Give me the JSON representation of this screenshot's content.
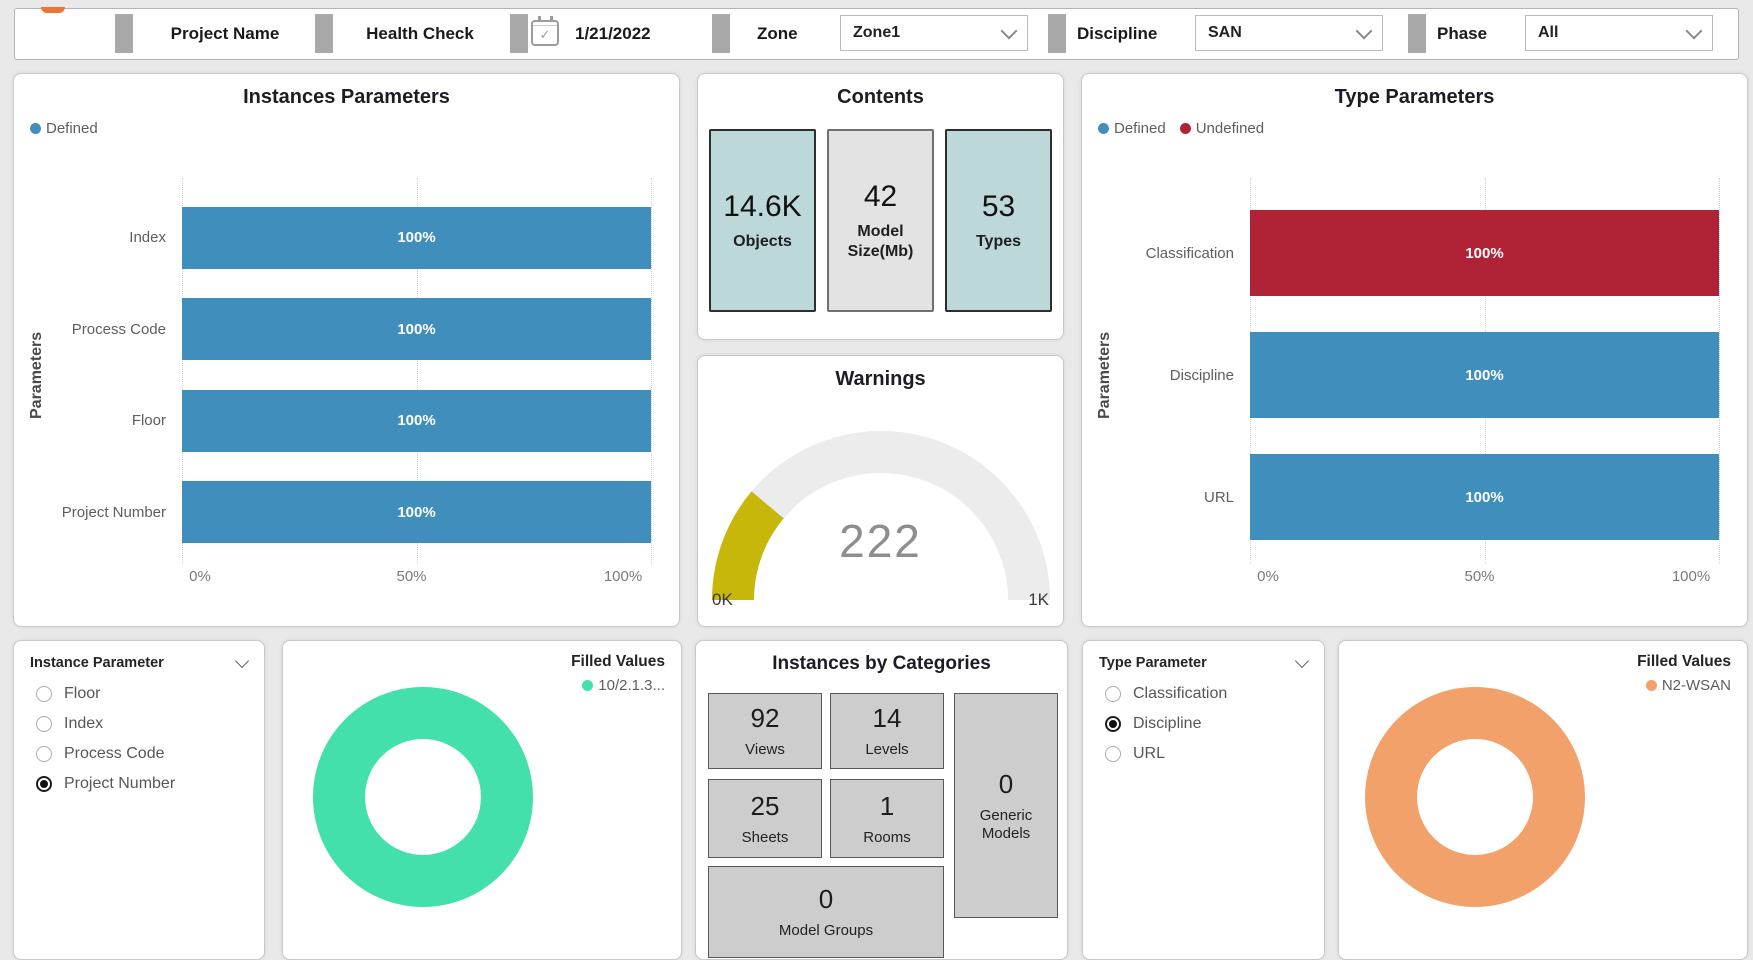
{
  "topbar": {
    "project_label": "Project Name",
    "health_label": "Health Check",
    "date_value": "1/21/2022",
    "zone_label": "Zone",
    "zone_value": "Zone1",
    "discipline_label": "Discipline",
    "discipline_value": "SAN",
    "phase_label": "Phase",
    "phase_value": "All"
  },
  "colors": {
    "blue": "#408ebc",
    "red": "#b02236",
    "yellow": "#c6b70a",
    "gauge_track": "#ececec",
    "green": "#43e0ac",
    "orange": "#f1a169"
  },
  "chart_data": [
    {
      "id": "instances-parameters",
      "type": "bar",
      "title": "Instances Parameters",
      "ylabel": "Parameters",
      "legend": [
        {
          "label": "Defined",
          "color": "#408ebc"
        }
      ],
      "categories": [
        "Index",
        "Process Code",
        "Floor",
        "Project Number"
      ],
      "values": [
        100,
        100,
        100,
        100
      ],
      "labels": [
        "100%",
        "100%",
        "100%",
        "100%"
      ],
      "colors": [
        "#408ebc",
        "#408ebc",
        "#408ebc",
        "#408ebc"
      ],
      "xlim": [
        0,
        100
      ],
      "x_ticks": [
        {
          "label": "0%",
          "pos": 0
        },
        {
          "label": "50%",
          "pos": 50
        },
        {
          "label": "100%",
          "pos": 100
        }
      ],
      "grid": "dotted-vertical",
      "legend_position": "top-left"
    },
    {
      "id": "type-parameters",
      "type": "bar",
      "title": "Type Parameters",
      "ylabel": "Parameters",
      "legend": [
        {
          "label": "Defined",
          "color": "#408ebc"
        },
        {
          "label": "Undefined",
          "color": "#b02236"
        }
      ],
      "categories": [
        "Classification",
        "Discipline",
        "URL"
      ],
      "values": [
        100,
        100,
        100
      ],
      "labels": [
        "100%",
        "100%",
        "100%"
      ],
      "colors": [
        "#b02236",
        "#408ebc",
        "#408ebc"
      ],
      "series_note": "Classification = Undefined series, Discipline and URL = Defined series",
      "xlim": [
        0,
        100
      ],
      "x_ticks": [
        {
          "label": "0%",
          "pos": 0
        },
        {
          "label": "50%",
          "pos": 50
        },
        {
          "label": "100%",
          "pos": 100
        }
      ],
      "grid": "dotted-vertical",
      "legend_position": "top-left"
    },
    {
      "id": "warnings",
      "type": "gauge",
      "title": "Warnings",
      "value": 222,
      "min": 0,
      "max": 1000,
      "min_label": "0K",
      "max_label": "1K",
      "color": "#c6b70a",
      "track_color": "#ececec"
    },
    {
      "id": "filled-values-instance",
      "type": "donut",
      "header": "Filled Values",
      "legend": [
        {
          "label": "10/2.1.3...",
          "color": "#43e0ac"
        }
      ],
      "slices": [
        {
          "label": "10/2.1.3...",
          "value": 100,
          "color": "#43e0ac"
        }
      ]
    },
    {
      "id": "filled-values-type",
      "type": "donut",
      "header": "Filled Values",
      "legend": [
        {
          "label": "N2-WSAN",
          "color": "#f1a169"
        }
      ],
      "slices": [
        {
          "label": "N2-WSAN",
          "value": 100,
          "color": "#f1a169"
        }
      ]
    }
  ],
  "contents": {
    "title": "Contents",
    "tiles": [
      {
        "value": "14.6K",
        "label": "Objects",
        "variant": "teal"
      },
      {
        "value": "42",
        "label": "Model Size(Mb)",
        "variant": "gray"
      },
      {
        "value": "53",
        "label": "Types",
        "variant": "teal"
      }
    ]
  },
  "categories_card": {
    "title": "Instances by Categories",
    "tiles": [
      {
        "key": "views",
        "value": "92",
        "label": "Views"
      },
      {
        "key": "levels",
        "value": "14",
        "label": "Levels"
      },
      {
        "key": "sheets",
        "value": "25",
        "label": "Sheets"
      },
      {
        "key": "rooms",
        "value": "1",
        "label": "Rooms"
      },
      {
        "key": "model_groups",
        "value": "0",
        "label": "Model Groups"
      },
      {
        "key": "generic_models",
        "value": "0",
        "label": "Generic Models"
      }
    ]
  },
  "slicers": [
    {
      "title": "Instance Parameter",
      "options": [
        {
          "label": "Floor",
          "selected": false
        },
        {
          "label": "Index",
          "selected": false
        },
        {
          "label": "Process Code",
          "selected": false
        },
        {
          "label": "Project Number",
          "selected": true
        }
      ]
    },
    {
      "title": "Type Parameter",
      "options": [
        {
          "label": "Classification",
          "selected": false
        },
        {
          "label": "Discipline",
          "selected": true
        },
        {
          "label": "URL",
          "selected": false
        }
      ]
    }
  ]
}
